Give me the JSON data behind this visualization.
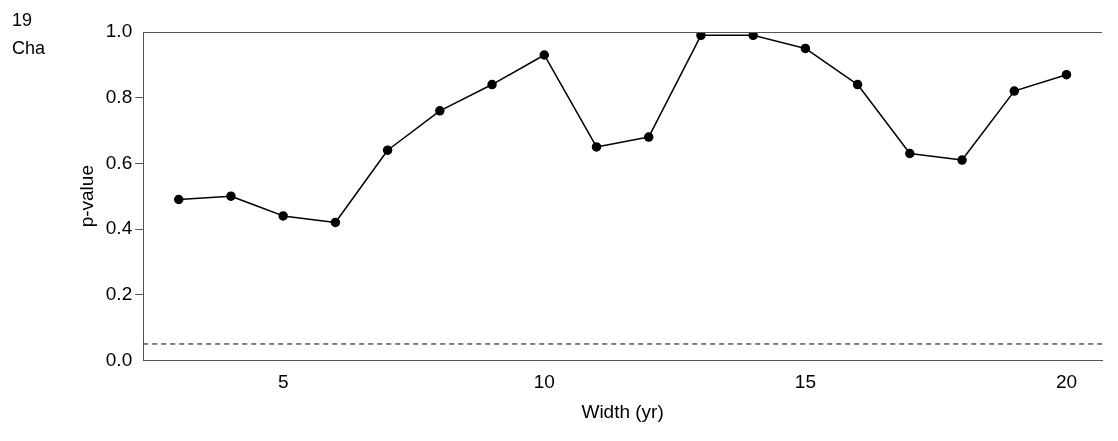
{
  "chart_data": {
    "type": "line",
    "xlabel": "Width (yr)",
    "ylabel": "p-value",
    "annotations": [
      "19",
      "Cha"
    ],
    "x": [
      3,
      4,
      5,
      6,
      7,
      8,
      9,
      10,
      11,
      12,
      13,
      14,
      15,
      16,
      17,
      18,
      19,
      20
    ],
    "series": [
      {
        "color": "#000000",
        "values": [
          0.49,
          0.5,
          0.44,
          0.42,
          0.64,
          0.76,
          0.84,
          0.93,
          0.65,
          0.68,
          0.99,
          0.99,
          0.95,
          0.84,
          0.63,
          0.61,
          0.82,
          0.87
        ]
      }
    ],
    "xlim": [
      2.32,
      20.68
    ],
    "xticks": [
      5,
      10,
      15,
      20
    ],
    "ylim": [
      0,
      1
    ],
    "yticks": [
      {
        "value": 0,
        "label": "0.0"
      },
      {
        "value": 0.2,
        "label": "0.2"
      },
      {
        "value": 0.4,
        "label": "0.4"
      },
      {
        "value": 0.6,
        "label": "0.6"
      },
      {
        "value": 0.8,
        "label": "0.8"
      },
      {
        "value": 1,
        "label": "1.0"
      }
    ],
    "ref_lines": [
      {
        "axis": "y",
        "value": 0.05,
        "line_style": "dashed"
      }
    ],
    "grid": false,
    "legend": false,
    "marker": "circle",
    "line_style": "solid"
  }
}
